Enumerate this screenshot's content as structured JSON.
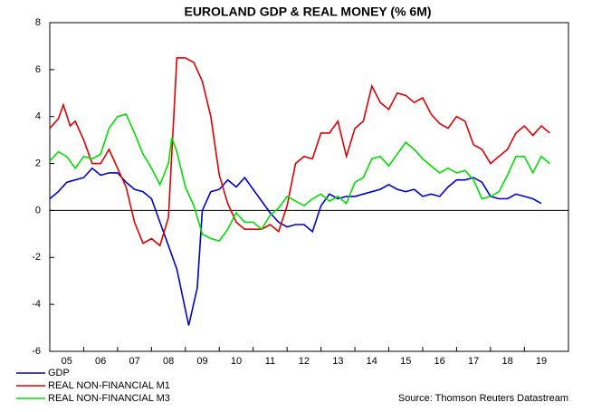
{
  "chart_data": {
    "type": "line",
    "title": "EUROLAND GDP & REAL MONEY (% 6M)",
    "source": "Source: Thomson Reuters Datastream",
    "xlim": [
      5,
      20.3
    ],
    "xticks": [
      {
        "value": 5.5,
        "label": "05"
      },
      {
        "value": 6.5,
        "label": "06"
      },
      {
        "value": 7.5,
        "label": "07"
      },
      {
        "value": 8.5,
        "label": "08"
      },
      {
        "value": 9.5,
        "label": "09"
      },
      {
        "value": 10.5,
        "label": "10"
      },
      {
        "value": 11.5,
        "label": "11"
      },
      {
        "value": 12.5,
        "label": "12"
      },
      {
        "value": 13.5,
        "label": "13"
      },
      {
        "value": 14.5,
        "label": "14"
      },
      {
        "value": 15.5,
        "label": "15"
      },
      {
        "value": 16.5,
        "label": "16"
      },
      {
        "value": 17.5,
        "label": "17"
      },
      {
        "value": 18.5,
        "label": "18"
      },
      {
        "value": 19.5,
        "label": "19"
      }
    ],
    "ylim": [
      -6,
      8
    ],
    "yticks": [
      8,
      6,
      4,
      2,
      0,
      -2,
      -4,
      -6
    ],
    "series": [
      {
        "name": "GDP",
        "color": "#0000cc",
        "x": [
          5.0,
          5.25,
          5.5,
          5.75,
          6.0,
          6.25,
          6.5,
          6.75,
          7.0,
          7.25,
          7.5,
          7.75,
          8.0,
          8.25,
          8.5,
          8.75,
          9.1,
          9.35,
          9.5,
          9.75,
          10.0,
          10.25,
          10.5,
          10.75,
          11.0,
          11.25,
          11.5,
          11.75,
          12.0,
          12.25,
          12.5,
          12.75,
          13.0,
          13.25,
          13.5,
          13.75,
          14.0,
          14.25,
          14.5,
          14.75,
          15.0,
          15.25,
          15.5,
          15.75,
          16.0,
          16.25,
          16.5,
          16.75,
          17.0,
          17.25,
          17.5,
          17.75,
          18.0,
          18.25,
          18.5,
          18.75,
          19.0,
          19.25,
          19.5
        ],
        "values": [
          0.5,
          0.8,
          1.2,
          1.3,
          1.4,
          1.8,
          1.5,
          1.6,
          1.6,
          1.2,
          0.9,
          0.8,
          0.5,
          -0.5,
          -1.5,
          -2.5,
          -4.9,
          -3.3,
          0,
          0.8,
          0.9,
          1.3,
          1.0,
          1.4,
          0.9,
          0.4,
          -0.1,
          -0.5,
          -0.7,
          -0.6,
          -0.6,
          -0.9,
          0.2,
          0.7,
          0.5,
          0.6,
          0.6,
          0.7,
          0.8,
          0.9,
          1.1,
          0.9,
          0.8,
          0.9,
          0.6,
          0.7,
          0.6,
          1.0,
          1.3,
          1.3,
          1.4,
          1.2,
          0.6,
          0.5,
          0.5,
          0.7,
          0.6,
          0.5,
          0.3
        ]
      },
      {
        "name": "REAL NON-FINANCIAL M1",
        "color": "#dd0000",
        "x": [
          5.0,
          5.25,
          5.4,
          5.6,
          5.75,
          6.0,
          6.25,
          6.5,
          6.75,
          7.0,
          7.25,
          7.5,
          7.75,
          8.0,
          8.25,
          8.5,
          8.75,
          9.0,
          9.25,
          9.5,
          9.75,
          10.0,
          10.25,
          10.5,
          10.75,
          11.0,
          11.25,
          11.5,
          11.75,
          12.0,
          12.25,
          12.5,
          12.75,
          13.0,
          13.25,
          13.5,
          13.75,
          14.0,
          14.25,
          14.5,
          14.75,
          15.0,
          15.25,
          15.5,
          15.75,
          16.0,
          16.25,
          16.5,
          16.75,
          17.0,
          17.25,
          17.5,
          17.75,
          18.0,
          18.25,
          18.5,
          18.75,
          19.0,
          19.25,
          19.5,
          19.75
        ],
        "values": [
          3.5,
          3.9,
          4.5,
          3.6,
          3.8,
          3.0,
          2.0,
          2.0,
          2.6,
          1.8,
          1.0,
          -0.5,
          -1.4,
          -1.2,
          -1.5,
          -0.3,
          6.5,
          6.5,
          6.3,
          5.5,
          4.0,
          1.5,
          0.3,
          -0.5,
          -0.8,
          -0.8,
          -0.8,
          -0.6,
          -0.9,
          0.2,
          2.0,
          2.3,
          2.2,
          3.3,
          3.3,
          3.8,
          2.3,
          3.5,
          3.8,
          5.3,
          4.6,
          4.3,
          5.0,
          4.9,
          4.6,
          4.8,
          4.1,
          3.7,
          3.5,
          4.0,
          3.8,
          2.8,
          2.6,
          2.0,
          2.3,
          2.6,
          3.3,
          3.6,
          3.2,
          3.6,
          3.3
        ]
      },
      {
        "name": "REAL NON-FINANCIAL M3",
        "color": "#00dd00",
        "x": [
          5.0,
          5.25,
          5.5,
          5.75,
          6.0,
          6.25,
          6.5,
          6.75,
          7.0,
          7.25,
          7.5,
          7.75,
          8.0,
          8.25,
          8.5,
          8.6,
          8.75,
          9.0,
          9.25,
          9.5,
          9.75,
          10.0,
          10.25,
          10.5,
          10.75,
          11.0,
          11.25,
          11.5,
          11.75,
          12.0,
          12.25,
          12.5,
          12.75,
          13.0,
          13.25,
          13.5,
          13.75,
          14.0,
          14.25,
          14.5,
          14.75,
          15.0,
          15.25,
          15.5,
          15.75,
          16.0,
          16.25,
          16.5,
          16.75,
          17.0,
          17.25,
          17.5,
          17.75,
          18.0,
          18.25,
          18.5,
          18.75,
          19.0,
          19.25,
          19.5,
          19.75
        ],
        "values": [
          2.1,
          2.5,
          2.3,
          1.8,
          2.3,
          2.2,
          2.4,
          3.5,
          4.0,
          4.1,
          3.3,
          2.4,
          1.8,
          1.1,
          2.0,
          3.1,
          2.5,
          1.0,
          0.2,
          -1.0,
          -1.2,
          -1.3,
          -0.8,
          -0.1,
          -0.5,
          -0.5,
          -0.8,
          -0.2,
          0.1,
          0.6,
          0.4,
          0.2,
          0.5,
          0.7,
          0.4,
          0.6,
          0.3,
          1.2,
          1.4,
          2.2,
          2.3,
          1.9,
          2.4,
          2.9,
          2.6,
          2.2,
          1.9,
          1.6,
          1.8,
          1.6,
          1.7,
          1.3,
          0.5,
          0.6,
          0.8,
          1.5,
          2.3,
          2.3,
          1.6,
          2.3,
          2.0
        ]
      }
    ]
  }
}
